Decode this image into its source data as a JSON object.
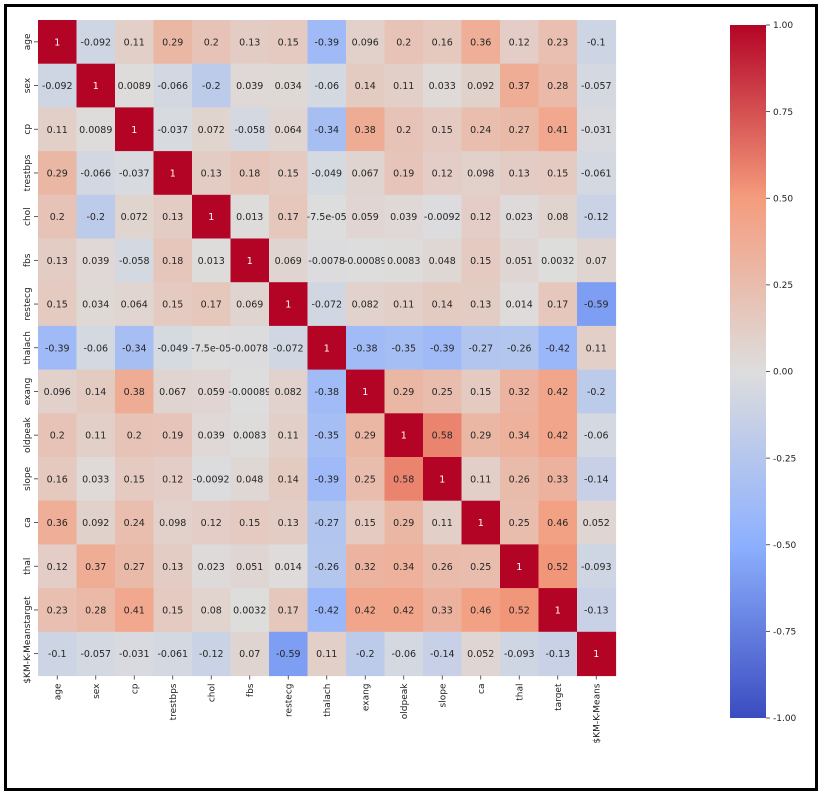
{
  "chart_data": {
    "type": "heatmap",
    "title": "",
    "xlabel": "",
    "ylabel": "",
    "labels": [
      "age",
      "sex",
      "cp",
      "trestbps",
      "chol",
      "fbs",
      "restecg",
      "thalach",
      "exang",
      "oldpeak",
      "slope",
      "ca",
      "thal",
      "target",
      "$KM-K-Means"
    ],
    "matrix": [
      [
        1,
        -0.092,
        0.11,
        0.29,
        0.2,
        0.13,
        0.15,
        -0.39,
        0.096,
        0.2,
        0.16,
        0.36,
        0.12,
        0.23,
        -0.1
      ],
      [
        -0.092,
        1,
        0.0089,
        -0.066,
        -0.2,
        0.039,
        0.034,
        -0.06,
        0.14,
        0.11,
        0.033,
        0.092,
        0.37,
        0.28,
        -0.057
      ],
      [
        0.11,
        0.0089,
        1,
        -0.037,
        0.072,
        -0.058,
        0.064,
        -0.34,
        0.38,
        0.2,
        0.15,
        0.24,
        0.27,
        0.41,
        -0.031
      ],
      [
        0.29,
        -0.066,
        -0.037,
        1,
        0.13,
        0.18,
        0.15,
        -0.049,
        0.067,
        0.19,
        0.12,
        0.098,
        0.13,
        0.15,
        -0.061
      ],
      [
        0.2,
        -0.2,
        0.072,
        0.13,
        1,
        0.013,
        0.17,
        -7.5e-05,
        0.059,
        0.039,
        -0.0092,
        0.12,
        0.023,
        0.08,
        -0.12
      ],
      [
        0.13,
        0.039,
        -0.058,
        0.18,
        0.013,
        1,
        0.069,
        -0.0078,
        -0.00089,
        0.0083,
        0.048,
        0.15,
        0.051,
        0.0032,
        0.07
      ],
      [
        0.15,
        0.034,
        0.064,
        0.15,
        0.17,
        0.069,
        1,
        -0.072,
        0.082,
        0.11,
        0.14,
        0.13,
        0.014,
        0.17,
        -0.59
      ],
      [
        -0.39,
        -0.06,
        -0.34,
        -0.049,
        -7.5e-05,
        -0.0078,
        -0.072,
        1,
        -0.38,
        -0.35,
        -0.39,
        -0.27,
        -0.26,
        -0.42,
        0.11
      ],
      [
        0.096,
        0.14,
        0.38,
        0.067,
        0.059,
        -0.00089,
        0.082,
        -0.38,
        1,
        0.29,
        0.25,
        0.15,
        0.32,
        0.42,
        -0.2
      ],
      [
        0.2,
        0.11,
        0.2,
        0.19,
        0.039,
        0.0083,
        0.11,
        -0.35,
        0.29,
        1,
        0.58,
        0.29,
        0.34,
        0.42,
        -0.06
      ],
      [
        0.16,
        0.033,
        0.15,
        0.12,
        -0.0092,
        0.048,
        0.14,
        -0.39,
        0.25,
        0.58,
        1,
        0.11,
        0.26,
        0.33,
        -0.14
      ],
      [
        0.36,
        0.092,
        0.24,
        0.098,
        0.12,
        0.15,
        0.13,
        -0.27,
        0.15,
        0.29,
        0.11,
        1,
        0.25,
        0.46,
        0.052
      ],
      [
        0.12,
        0.37,
        0.27,
        0.13,
        0.023,
        0.051,
        0.014,
        -0.26,
        0.32,
        0.34,
        0.26,
        0.25,
        1,
        0.52,
        -0.093
      ],
      [
        0.23,
        0.28,
        0.41,
        0.15,
        0.08,
        0.0032,
        0.17,
        -0.42,
        0.42,
        0.42,
        0.33,
        0.46,
        0.52,
        1,
        -0.13
      ],
      [
        -0.1,
        -0.057,
        -0.031,
        -0.061,
        -0.12,
        0.07,
        -0.59,
        0.11,
        -0.2,
        -0.06,
        -0.14,
        0.052,
        -0.093,
        -0.13,
        1
      ]
    ],
    "cell_labels": [
      [
        "1",
        "-0.092",
        "0.11",
        "0.29",
        "0.2",
        "0.13",
        "0.15",
        "-0.39",
        "0.096",
        "0.2",
        "0.16",
        "0.36",
        "0.12",
        "0.23",
        "-0.1"
      ],
      [
        "-0.092",
        "1",
        "0.0089",
        "-0.066",
        "-0.2",
        "0.039",
        "0.034",
        "-0.06",
        "0.14",
        "0.11",
        "0.033",
        "0.092",
        "0.37",
        "0.28",
        "-0.057"
      ],
      [
        "0.11",
        "0.0089",
        "1",
        "-0.037",
        "0.072",
        "-0.058",
        "0.064",
        "-0.34",
        "0.38",
        "0.2",
        "0.15",
        "0.24",
        "0.27",
        "0.41",
        "-0.031"
      ],
      [
        "0.29",
        "-0.066",
        "-0.037",
        "1",
        "0.13",
        "0.18",
        "0.15",
        "-0.049",
        "0.067",
        "0.19",
        "0.12",
        "0.098",
        "0.13",
        "0.15",
        "-0.061"
      ],
      [
        "0.2",
        "-0.2",
        "0.072",
        "0.13",
        "1",
        "0.013",
        "0.17",
        "-7.5e-05",
        "0.059",
        "0.039",
        "-0.0092",
        "0.12",
        "0.023",
        "0.08",
        "-0.12"
      ],
      [
        "0.13",
        "0.039",
        "-0.058",
        "0.18",
        "0.013",
        "1",
        "0.069",
        "-0.0078",
        "-0.00089",
        "0.0083",
        "0.048",
        "0.15",
        "0.051",
        "0.0032",
        "0.07"
      ],
      [
        "0.15",
        "0.034",
        "0.064",
        "0.15",
        "0.17",
        "0.069",
        "1",
        "-0.072",
        "0.082",
        "0.11",
        "0.14",
        "0.13",
        "0.014",
        "0.17",
        "-0.59"
      ],
      [
        "-0.39",
        "-0.06",
        "-0.34",
        "-0.049",
        "-7.5e-05",
        "-0.0078",
        "-0.072",
        "1",
        "-0.38",
        "-0.35",
        "-0.39",
        "-0.27",
        "-0.26",
        "-0.42",
        "0.11"
      ],
      [
        "0.096",
        "0.14",
        "0.38",
        "0.067",
        "0.059",
        "-0.00089",
        "0.082",
        "-0.38",
        "1",
        "0.29",
        "0.25",
        "0.15",
        "0.32",
        "0.42",
        "-0.2"
      ],
      [
        "0.2",
        "0.11",
        "0.2",
        "0.19",
        "0.039",
        "0.0083",
        "0.11",
        "-0.35",
        "0.29",
        "1",
        "0.58",
        "0.29",
        "0.34",
        "0.42",
        "-0.06"
      ],
      [
        "0.16",
        "0.033",
        "0.15",
        "0.12",
        "-0.0092",
        "0.048",
        "0.14",
        "-0.39",
        "0.25",
        "0.58",
        "1",
        "0.11",
        "0.26",
        "0.33",
        "-0.14"
      ],
      [
        "0.36",
        "0.092",
        "0.24",
        "0.098",
        "0.12",
        "0.15",
        "0.13",
        "-0.27",
        "0.15",
        "0.29",
        "0.11",
        "1",
        "0.25",
        "0.46",
        "0.052"
      ],
      [
        "0.12",
        "0.37",
        "0.27",
        "0.13",
        "0.023",
        "0.051",
        "0.014",
        "-0.26",
        "0.32",
        "0.34",
        "0.26",
        "0.25",
        "1",
        "0.52",
        "-0.093"
      ],
      [
        "0.23",
        "0.28",
        "0.41",
        "0.15",
        "0.08",
        "0.0032",
        "0.17",
        "-0.42",
        "0.42",
        "0.42",
        "0.33",
        "0.46",
        "0.52",
        "1",
        "-0.13"
      ],
      [
        "-0.1",
        "-0.057",
        "-0.031",
        "-0.061",
        "-0.12",
        "0.07",
        "-0.59",
        "0.11",
        "-0.2",
        "-0.06",
        "-0.14",
        "0.052",
        "-0.093",
        "-0.13",
        "1"
      ]
    ],
    "colormap": "coolwarm",
    "vmin": -1,
    "vmax": 1,
    "colorbar": {
      "position": "right",
      "ticks": [
        1.0,
        0.75,
        0.5,
        0.25,
        0.0,
        -0.25,
        -0.5,
        -0.75,
        -1.0
      ],
      "tick_labels": [
        "1.00",
        "0.75",
        "0.50",
        "0.25",
        "0.00",
        "-0.25",
        "-0.50",
        "-0.75",
        "-1.00"
      ]
    }
  }
}
